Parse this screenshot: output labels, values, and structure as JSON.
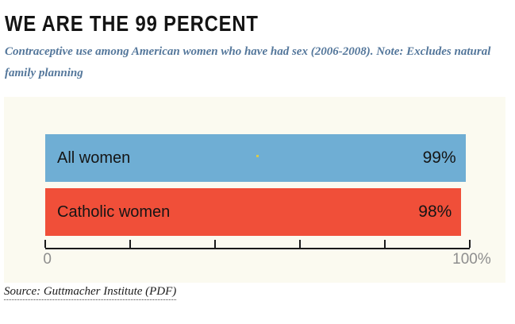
{
  "header": {
    "title": "WE ARE THE 99 PERCENT",
    "subtitle": "Contraceptive use among American women who have had sex (2006-2008). Note: Excludes natural\nfamily planning"
  },
  "chart_data": {
    "type": "bar",
    "orientation": "horizontal",
    "title": "WE ARE THE 99 PERCENT",
    "subtitle": "Contraceptive use among American women who have had sex (2006-2008). Note: Excludes natural family planning",
    "categories": [
      "All women",
      "Catholic women"
    ],
    "values": [
      99,
      98
    ],
    "value_labels": [
      "99%",
      "98%"
    ],
    "bar_colors": [
      "#6FAED4",
      "#F04F39"
    ],
    "xlim": [
      0,
      100
    ],
    "x_ticks": [
      0,
      20,
      40,
      60,
      80,
      100
    ],
    "x_axis": {
      "min_label": "0",
      "max_label": "100%"
    },
    "grid": false,
    "legend": false
  },
  "source": {
    "label": "Source: Guttmacher Institute (PDF)"
  },
  "colors": {
    "page_bg": "#FFFFFF",
    "panel_bg": "#FBFAF0",
    "bar_blue": "#6FAED4",
    "bar_red": "#F04F39",
    "title_text": "#141414",
    "subtitle_text": "#54779B",
    "axis_label": "#8E8E8E",
    "axis_line": "#1A1A1A",
    "stray_dot": "#D9CB4B"
  }
}
